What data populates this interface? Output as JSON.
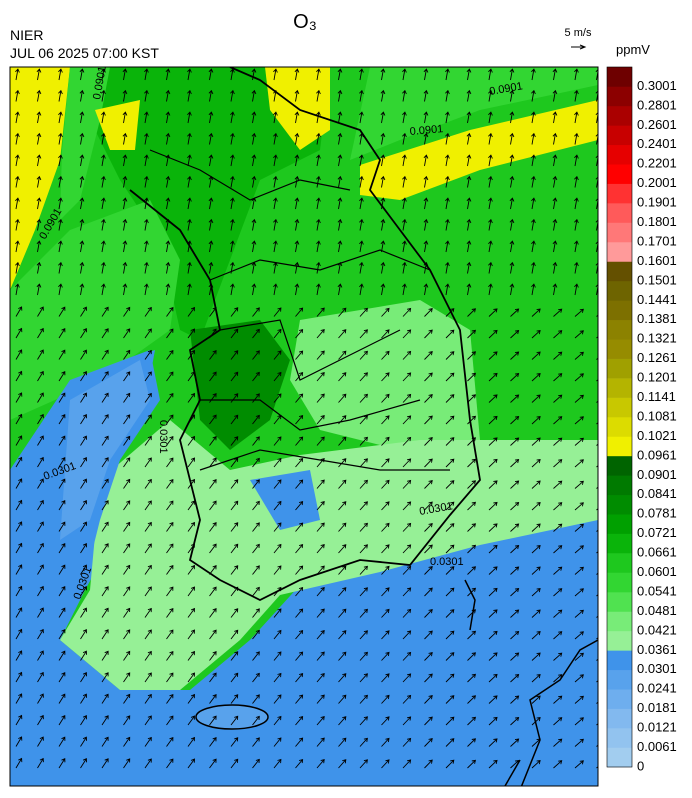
{
  "header": {
    "title": "O₃",
    "agency": "NIER",
    "datetime": "JUL 06 2025 07:00 KST",
    "wind_scale": "5 m/s"
  },
  "colorbar": {
    "unit": "ppmV",
    "labels": [
      "0",
      "0.0061",
      "0.0121",
      "0.0181",
      "0.0241",
      "0.0301",
      "0.0361",
      "0.0421",
      "0.0481",
      "0.0541",
      "0.0601",
      "0.0661",
      "0.0721",
      "0.0781",
      "0.0841",
      "0.0901",
      "0.0961",
      "0.1021",
      "0.1081",
      "0.1141",
      "0.1201",
      "0.1261",
      "0.1321",
      "0.1381",
      "0.1441",
      "0.1501",
      "0.1601",
      "0.1701",
      "0.1801",
      "0.1901",
      "0.2001",
      "0.2201",
      "0.2401",
      "0.2601",
      "0.2801",
      "0.3001"
    ],
    "colors": [
      "#a2cdef",
      "#92c3ef",
      "#82b9ef",
      "#6eaeee",
      "#58a2ec",
      "#3f93ea",
      "#96f096",
      "#78ec78",
      "#50e250",
      "#32d632",
      "#1ec81e",
      "#0ab40a",
      "#00a000",
      "#008c00",
      "#007a00",
      "#006400",
      "#f0f000",
      "#dcdc00",
      "#c8c800",
      "#b4b400",
      "#a0a000",
      "#968c00",
      "#8c8200",
      "#7d7000",
      "#6e6400",
      "#645000",
      "#ff9a9a",
      "#ff7878",
      "#ff5a5a",
      "#ff3232",
      "#ff0000",
      "#e60000",
      "#c80000",
      "#aa0000",
      "#8c0000",
      "#6e0000"
    ]
  },
  "contour_labels": [
    "0.0901",
    "0.0901",
    "0.0901",
    "0.0901",
    "0.0301",
    "0.0301",
    "0.0301",
    "0.0301",
    "0.0301"
  ]
}
